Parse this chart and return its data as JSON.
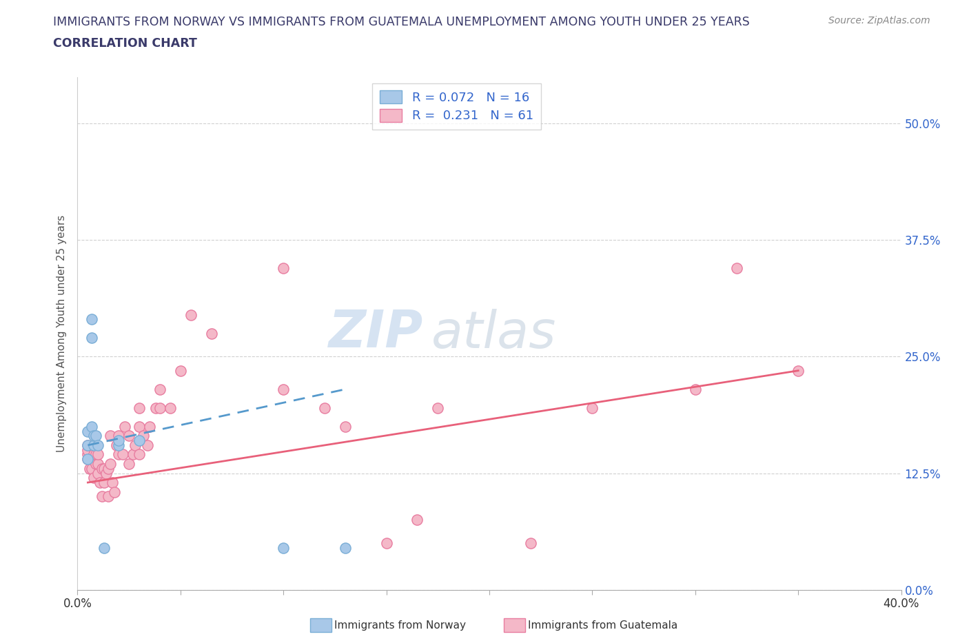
{
  "title_line1": "IMMIGRANTS FROM NORWAY VS IMMIGRANTS FROM GUATEMALA UNEMPLOYMENT AMONG YOUTH UNDER 25 YEARS",
  "title_line2": "CORRELATION CHART",
  "source_text": "Source: ZipAtlas.com",
  "ylabel": "Unemployment Among Youth under 25 years",
  "xlim": [
    0.0,
    0.4
  ],
  "ylim": [
    0.0,
    0.55
  ],
  "yticks": [
    0.0,
    0.125,
    0.25,
    0.375,
    0.5
  ],
  "ytick_labels": [
    "0.0%",
    "12.5%",
    "25.0%",
    "37.5%",
    "50.0%"
  ],
  "xticks": [
    0.0,
    0.05,
    0.1,
    0.15,
    0.2,
    0.25,
    0.3,
    0.35,
    0.4
  ],
  "norway_color": "#a8c8e8",
  "norway_edge_color": "#7aaed6",
  "guatemala_color": "#f4b8c8",
  "guatemala_edge_color": "#e87da0",
  "norway_line_color": "#5599cc",
  "guatemala_line_color": "#e8607a",
  "R_norway": 0.072,
  "N_norway": 16,
  "R_guatemala": 0.231,
  "N_guatemala": 61,
  "norway_scatter_x": [
    0.005,
    0.005,
    0.005,
    0.007,
    0.007,
    0.007,
    0.008,
    0.008,
    0.009,
    0.01,
    0.013,
    0.02,
    0.1,
    0.13,
    0.02,
    0.03
  ],
  "norway_scatter_y": [
    0.14,
    0.155,
    0.17,
    0.27,
    0.29,
    0.175,
    0.155,
    0.165,
    0.165,
    0.155,
    0.045,
    0.155,
    0.045,
    0.045,
    0.16,
    0.16
  ],
  "guatemala_scatter_x": [
    0.005,
    0.005,
    0.005,
    0.005,
    0.006,
    0.006,
    0.007,
    0.007,
    0.008,
    0.008,
    0.009,
    0.009,
    0.01,
    0.01,
    0.01,
    0.011,
    0.012,
    0.012,
    0.013,
    0.013,
    0.014,
    0.015,
    0.015,
    0.016,
    0.016,
    0.017,
    0.018,
    0.019,
    0.02,
    0.02,
    0.022,
    0.023,
    0.025,
    0.025,
    0.027,
    0.028,
    0.03,
    0.03,
    0.03,
    0.032,
    0.034,
    0.035,
    0.038,
    0.04,
    0.04,
    0.045,
    0.05,
    0.055,
    0.065,
    0.1,
    0.1,
    0.12,
    0.13,
    0.15,
    0.165,
    0.175,
    0.22,
    0.25,
    0.3,
    0.32,
    0.35
  ],
  "guatemala_scatter_y": [
    0.14,
    0.145,
    0.15,
    0.155,
    0.13,
    0.14,
    0.13,
    0.14,
    0.12,
    0.145,
    0.135,
    0.145,
    0.125,
    0.135,
    0.145,
    0.115,
    0.1,
    0.13,
    0.115,
    0.13,
    0.125,
    0.1,
    0.13,
    0.135,
    0.165,
    0.115,
    0.105,
    0.155,
    0.145,
    0.165,
    0.145,
    0.175,
    0.135,
    0.165,
    0.145,
    0.155,
    0.145,
    0.175,
    0.195,
    0.165,
    0.155,
    0.175,
    0.195,
    0.195,
    0.215,
    0.195,
    0.235,
    0.295,
    0.275,
    0.215,
    0.345,
    0.195,
    0.175,
    0.05,
    0.075,
    0.195,
    0.05,
    0.195,
    0.215,
    0.345,
    0.235
  ],
  "norway_trend_x": [
    0.005,
    0.13
  ],
  "norway_trend_y": [
    0.155,
    0.215
  ],
  "guatemala_trend_x": [
    0.005,
    0.35
  ],
  "guatemala_trend_y": [
    0.115,
    0.235
  ],
  "watermark_text_zip": "ZIP",
  "watermark_text_atlas": "atlas",
  "legend_box_color": "#ffffff",
  "background_color": "#ffffff",
  "grid_color": "#d0d0d0",
  "title_color": "#3a3a6a",
  "axis_label_color": "#555555",
  "source_color": "#888888",
  "label_color_blue": "#3366cc"
}
